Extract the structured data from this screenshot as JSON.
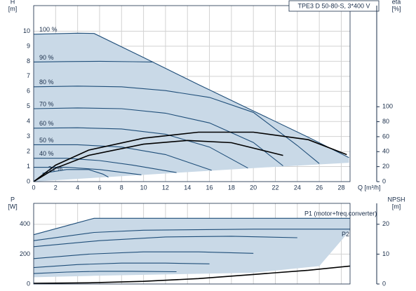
{
  "chart_data": [
    {
      "type": "line",
      "title": "TPE3 D 50-80-S, 3*400 V",
      "y_label": "H",
      "y_unit": "[m]",
      "y2_label": "eta",
      "y2_unit": "[%]",
      "x_label": "Q [m³/h]",
      "xlim": [
        0,
        28.8
      ],
      "xticks": [
        0,
        2,
        4,
        6,
        8,
        10,
        12,
        14,
        16,
        18,
        20,
        22,
        24,
        26,
        28
      ],
      "ylim": [
        0,
        11.7
      ],
      "yticks": [
        0,
        1,
        2,
        3,
        4,
        5,
        6,
        7,
        8,
        9,
        10
      ],
      "y2lim": [
        0,
        235
      ],
      "y2ticks": [
        0,
        20,
        40,
        60,
        80,
        100
      ],
      "grid": true,
      "x_tick_labels": true,
      "area": {
        "color": "#c9d9e7",
        "x": [
          0,
          5.5,
          10,
          20,
          28.7
        ],
        "upper": [
          9.8,
          9.85,
          8.25,
          4.7,
          1.6
        ],
        "lower": [
          0,
          0.25,
          0.45,
          0.9,
          1.25
        ]
      },
      "series": [
        {
          "name": "100 %",
          "color": "#1f4e79",
          "x": [
            0,
            2,
            4,
            5.5,
            10,
            15,
            20,
            25,
            28.7
          ],
          "values": [
            9.8,
            9.83,
            9.87,
            9.85,
            8.25,
            6.45,
            4.7,
            2.95,
            1.6
          ]
        },
        {
          "name": "90 %",
          "color": "#1f4e79",
          "x": [
            0,
            3,
            6,
            9,
            10.8
          ],
          "values": [
            7.95,
            7.98,
            8.0,
            7.97,
            7.95
          ]
        },
        {
          "name": "80 %",
          "color": "#1f4e79",
          "x": [
            0,
            4,
            8,
            12,
            16,
            20,
            24,
            26
          ],
          "values": [
            6.3,
            6.35,
            6.3,
            6.05,
            5.6,
            4.6,
            2.4,
            1.2
          ]
        },
        {
          "name": "70 %",
          "color": "#1f4e79",
          "x": [
            0,
            4,
            8,
            12,
            16,
            20,
            22.7
          ],
          "values": [
            4.85,
            4.9,
            4.85,
            4.55,
            3.9,
            2.6,
            1.05
          ]
        },
        {
          "name": "60 %",
          "color": "#1f4e79",
          "x": [
            0,
            4,
            8,
            12,
            16,
            19.5
          ],
          "values": [
            3.55,
            3.58,
            3.5,
            3.15,
            2.3,
            0.9
          ]
        },
        {
          "name": "50 %",
          "color": "#1f4e79",
          "x": [
            0,
            4,
            8,
            12,
            16.2
          ],
          "values": [
            2.45,
            2.45,
            2.3,
            1.8,
            0.75
          ]
        },
        {
          "name": "40 %",
          "color": "#1f4e79",
          "x": [
            0,
            3,
            6,
            9,
            13
          ],
          "values": [
            1.55,
            1.55,
            1.4,
            1.1,
            0.6
          ]
        },
        {
          "color": "#1f4e79",
          "x": [
            0,
            3,
            6,
            9.8
          ],
          "values": [
            0.95,
            0.95,
            0.8,
            0.45
          ]
        },
        {
          "name": "21 %",
          "color": "#1f4e79",
          "x": [
            0.8,
            3,
            5,
            6.3,
            6.8
          ],
          "values": [
            0.55,
            0.8,
            0.8,
            0.5,
            0.3
          ]
        },
        {
          "color": "#000000",
          "axis": "y2",
          "x": [
            0,
            2,
            5,
            10,
            15,
            20,
            25,
            28.5
          ],
          "values": [
            0,
            22,
            42,
            58,
            66,
            66,
            56,
            36
          ]
        },
        {
          "color": "#000000",
          "axis": "y2",
          "x": [
            0,
            2,
            5,
            10,
            14,
            18,
            22.7
          ],
          "values": [
            0,
            18,
            35,
            50,
            55,
            52,
            35
          ]
        }
      ]
    },
    {
      "type": "line",
      "y_label": "P",
      "y_unit": "[W]",
      "y2_label": "NPSH",
      "y2_unit": "[m]",
      "xlim": [
        0,
        28.8
      ],
      "xticks": [
        0,
        2,
        4,
        6,
        8,
        10,
        12,
        14,
        16,
        18,
        20,
        22,
        24,
        26,
        28
      ],
      "ylim": [
        0,
        540
      ],
      "yticks": [
        0,
        200,
        400
      ],
      "y2lim": [
        0,
        27
      ],
      "y2ticks": [
        0,
        10,
        20
      ],
      "grid": true,
      "x_tick_labels": false,
      "area": {
        "color": "#c9d9e7",
        "x": [
          0,
          5.5,
          20,
          26,
          28.8
        ],
        "upper": [
          330,
          440,
          440,
          440,
          440
        ],
        "lower": [
          45,
          55,
          75,
          120,
          360
        ]
      },
      "series": [
        {
          "name": "P1 (motor+freq.converter)",
          "color": "#1f4e79",
          "x": [
            0,
            2,
            4,
            5.5,
            10,
            20,
            28.8
          ],
          "values": [
            330,
            370,
            410,
            440,
            440,
            440,
            440
          ]
        },
        {
          "name": "P2",
          "color": "#1f4e79",
          "x": [
            0,
            5.5,
            10,
            20,
            28.8
          ],
          "values": [
            290,
            345,
            360,
            367,
            367
          ]
        },
        {
          "color": "#1f4e79",
          "x": [
            0,
            6,
            12,
            18,
            24
          ],
          "values": [
            250,
            290,
            315,
            320,
            310
          ]
        },
        {
          "color": "#1f4e79",
          "x": [
            0,
            5,
            10,
            15,
            20
          ],
          "values": [
            170,
            200,
            215,
            215,
            205
          ]
        },
        {
          "color": "#1f4e79",
          "x": [
            0,
            4,
            8,
            12,
            16
          ],
          "values": [
            110,
            130,
            140,
            140,
            135
          ]
        },
        {
          "color": "#1f4e79",
          "x": [
            0,
            3,
            6,
            9,
            13
          ],
          "values": [
            70,
            80,
            85,
            85,
            82
          ]
        },
        {
          "color": "#000000",
          "axis": "y2",
          "x": [
            0,
            5,
            10,
            15,
            20,
            25,
            28.8
          ],
          "values": [
            0.2,
            0.4,
            0.9,
            1.8,
            3.2,
            4.6,
            6.0
          ]
        }
      ]
    }
  ]
}
